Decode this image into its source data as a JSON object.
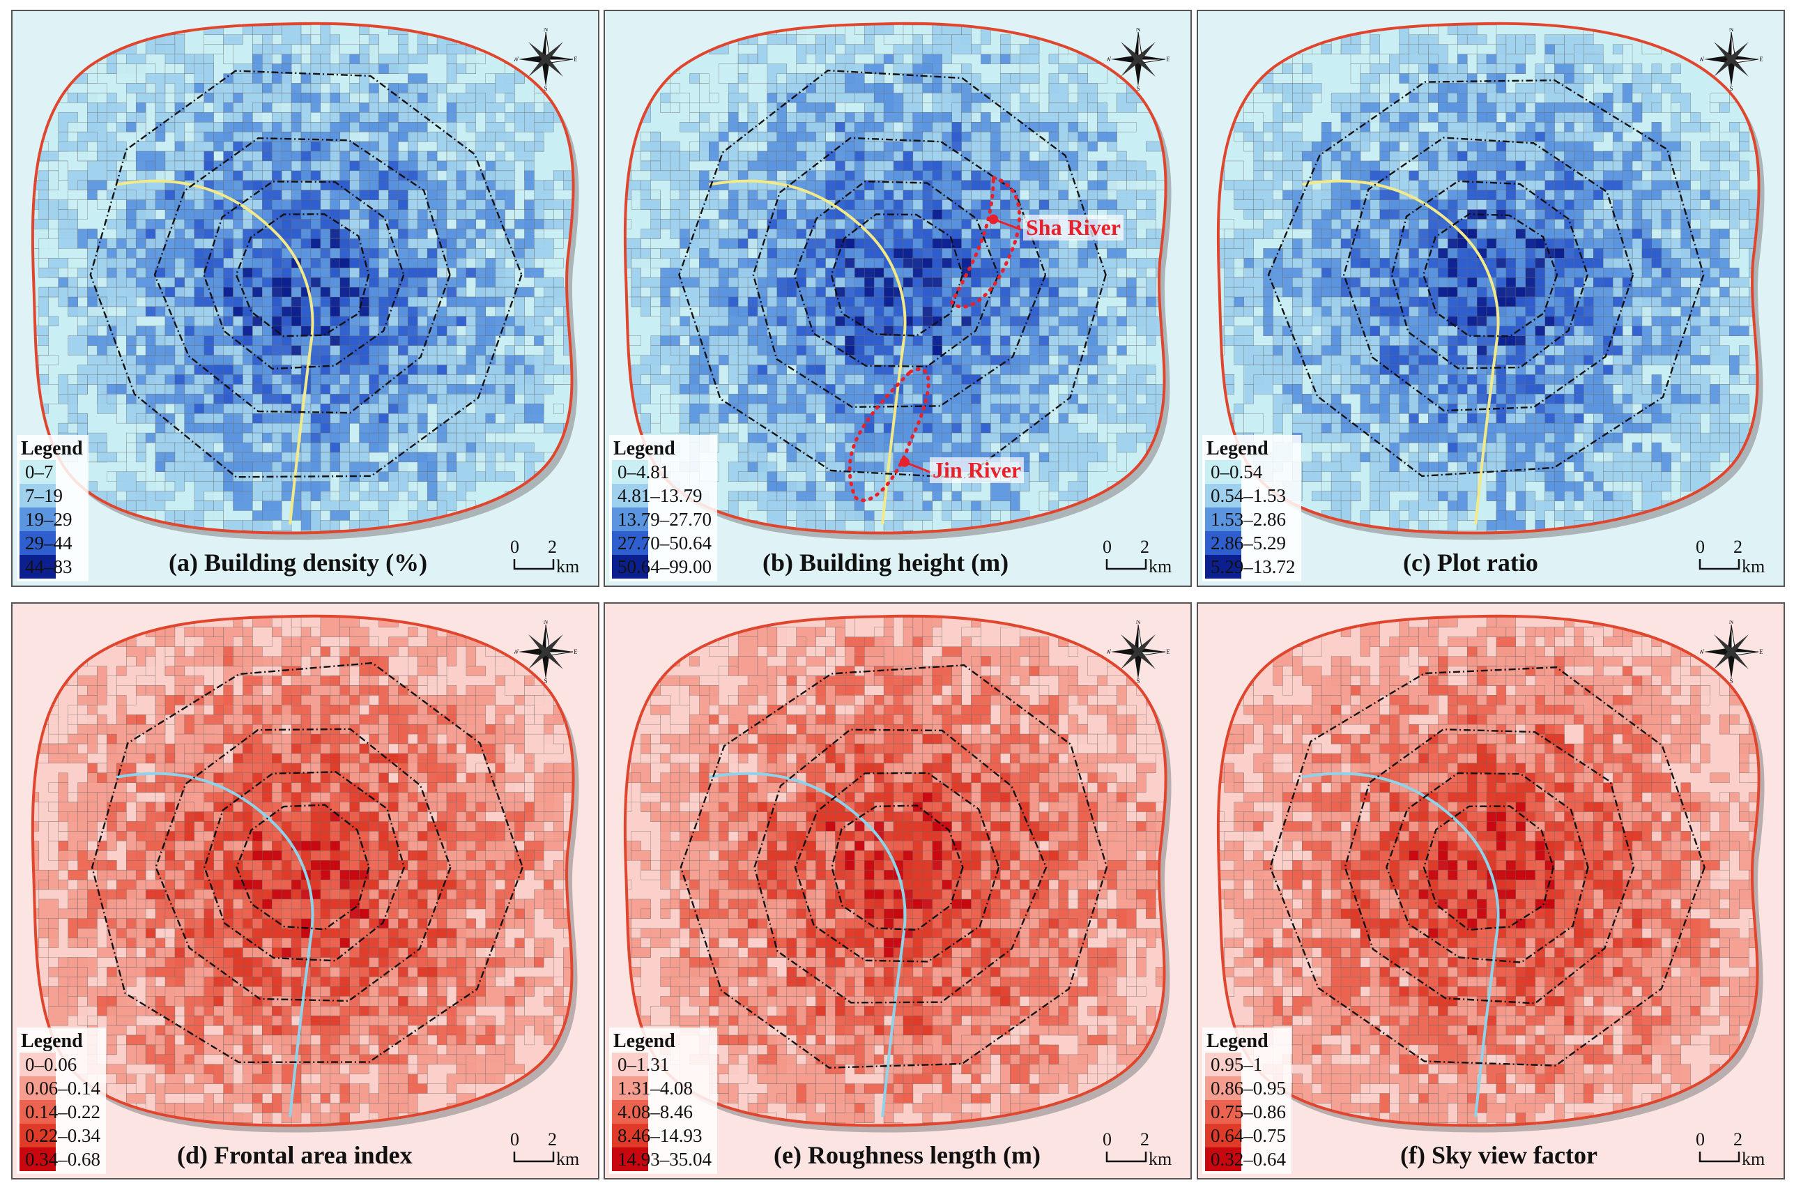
{
  "colors": {
    "blue_ramp": [
      "#c9eef3",
      "#9fd1ee",
      "#5b95e0",
      "#2f5fcf",
      "#0c1f8f"
    ],
    "red_ramp": [
      "#fbd0ca",
      "#f59d8f",
      "#ec6450",
      "#e03a28",
      "#c9070f"
    ],
    "boundary": "#e0452e",
    "ring_road": "#111111",
    "annotation": "#e8212a"
  },
  "legend_title": "Legend",
  "scale": {
    "zero": "0",
    "two": "2",
    "unit": "km"
  },
  "compass": {
    "north": "N",
    "south": "S",
    "east": "E",
    "west": "W"
  },
  "panels": [
    {
      "caption": "(a) Building density (%)",
      "theme": "blue",
      "classes": [
        "0–7",
        "7–19",
        "19–29",
        "29–44",
        "44–83"
      ]
    },
    {
      "caption": "(b) Building height (m)",
      "theme": "blue",
      "classes": [
        "0–4.81",
        "4.81–13.79",
        "13.79–27.70",
        "27.70–50.64",
        "50.64–99.00"
      ],
      "annotations": [
        "Sha River",
        "Jin River"
      ]
    },
    {
      "caption": "(c) Plot ratio",
      "theme": "blue",
      "classes": [
        "0–0.54",
        "0.54–1.53",
        "1.53–2.86",
        "2.86–5.29",
        "5.29–13.72"
      ]
    },
    {
      "caption": "(d) Frontal area index",
      "theme": "red",
      "classes": [
        "0–0.06",
        "0.06–0.14",
        "0.14–0.22",
        "0.22–0.34",
        "0.34–0.68"
      ]
    },
    {
      "caption": "(e) Roughness length (m)",
      "theme": "red",
      "classes": [
        "0–1.31",
        "1.31–4.08",
        "4.08–8.46",
        "8.46–14.93",
        "14.93–35.04"
      ]
    },
    {
      "caption": "(f) Sky view factor",
      "theme": "red",
      "classes": [
        "0.95–1",
        "0.86–0.95",
        "0.75–0.86",
        "0.64–0.75",
        "0.32–0.64"
      ]
    }
  ]
}
